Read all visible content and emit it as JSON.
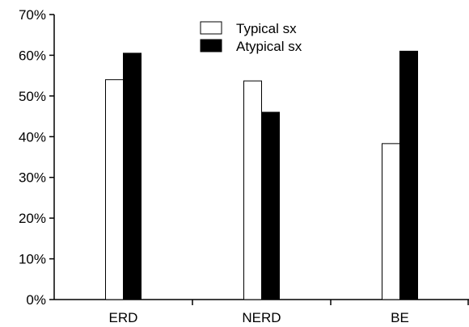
{
  "chart_data": {
    "type": "bar",
    "categories": [
      "ERD",
      "NERD",
      "BE"
    ],
    "series": [
      {
        "name": "Typical sx",
        "values": [
          54,
          53.7,
          38.3
        ],
        "color": "#ffffff"
      },
      {
        "name": "Atypical sx",
        "values": [
          60.5,
          46,
          61
        ],
        "color": "#000000"
      }
    ],
    "ylim": [
      0,
      70
    ],
    "yticks": [
      "0%",
      "10%",
      "20%",
      "30%",
      "40%",
      "50%",
      "60%",
      "70%"
    ],
    "legend_position": "top-center",
    "grid": false
  }
}
